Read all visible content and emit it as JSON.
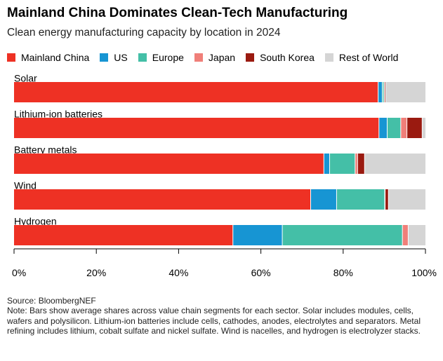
{
  "title": "Mainland China Dominates Clean-Tech Manufacturing",
  "subtitle": "Clean energy manufacturing capacity by location in 2024",
  "source": "Source: BloombergNEF",
  "note": "Note: Bars show average shares across value chain segments for each sector. Solar includes modules, cells, wafers and polysilicon. Lithium-ion batteries include cells, cathodes, anodes, electrolytes and separators. Metal refining includes lithium, cobalt sulfate and nickel sulfate. Wind is nacelles, and hydrogen is electrolyzer stacks.",
  "chart_data": {
    "type": "bar",
    "orientation": "horizontal",
    "stacked": true,
    "categories": [
      "Solar",
      "Lithium-ion batteries",
      "Battery metals",
      "Wind",
      "Hydrogen"
    ],
    "series": [
      {
        "name": "Mainland China",
        "color": "#ee3124",
        "values": [
          88.5,
          88.7,
          75.3,
          72.1,
          53.2
        ]
      },
      {
        "name": "US",
        "color": "#1795d3",
        "values": [
          1.0,
          2.0,
          1.4,
          6.3,
          12.0
        ]
      },
      {
        "name": "Europe",
        "color": "#44bfa7",
        "values": [
          0.4,
          3.3,
          6.2,
          11.7,
          29.2
        ]
      },
      {
        "name": "Japan",
        "color": "#f07f79",
        "values": [
          0.1,
          1.5,
          0.6,
          0.1,
          1.4
        ]
      },
      {
        "name": "South Korea",
        "color": "#9a1a10",
        "values": [
          0.3,
          3.7,
          1.7,
          0.8,
          0.0
        ]
      },
      {
        "name": "Rest of World",
        "color": "#d5d5d5",
        "values": [
          9.7,
          0.8,
          14.8,
          9.0,
          4.2
        ]
      }
    ],
    "xlim": [
      0,
      100
    ],
    "xticks": [
      "0%",
      "20%",
      "40%",
      "60%",
      "80%",
      "100%"
    ],
    "legend_position": "top",
    "grid": false
  }
}
